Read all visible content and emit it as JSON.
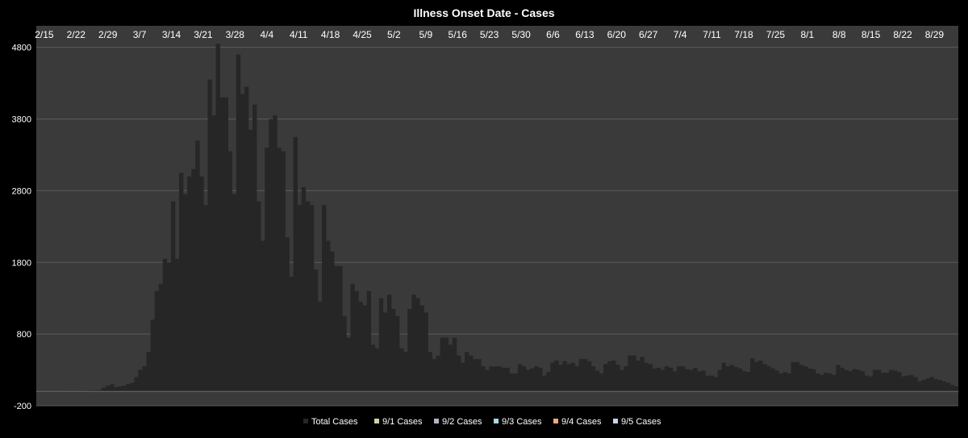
{
  "chart_data": {
    "type": "bar",
    "title": "Illness Onset Date - Cases",
    "xlabel": "",
    "ylabel": "",
    "ylim": [
      -200,
      5100
    ],
    "yticks": [
      -200,
      800,
      1800,
      2800,
      3800,
      4800
    ],
    "grid": true,
    "legend_position": "bottom",
    "x_tick_labels": [
      "2/15",
      "2/22",
      "2/29",
      "3/7",
      "3/14",
      "3/21",
      "3/28",
      "4/4",
      "4/11",
      "4/18",
      "4/25",
      "5/2",
      "5/9",
      "5/16",
      "5/23",
      "5/30",
      "6/6",
      "6/13",
      "6/20",
      "6/27",
      "7/4",
      "7/11",
      "7/18",
      "7/25",
      "8/1",
      "8/8",
      "8/15",
      "8/22",
      "8/29"
    ],
    "series": [
      {
        "name": "Total Cases",
        "color": "#262626",
        "values": [
          2,
          2,
          2,
          2,
          2,
          3,
          3,
          4,
          5,
          5,
          7,
          7,
          10,
          12,
          15,
          20,
          50,
          80,
          100,
          60,
          70,
          80,
          100,
          120,
          200,
          300,
          350,
          550,
          1000,
          1400,
          1500,
          1850,
          1800,
          2650,
          1850,
          3050,
          2750,
          3000,
          3100,
          3500,
          3000,
          2600,
          4350,
          3850,
          4850,
          4100,
          4100,
          3350,
          2750,
          4700,
          4150,
          4250,
          3650,
          4000,
          2650,
          2100,
          3400,
          3800,
          3850,
          3400,
          3350,
          2150,
          1600,
          3550,
          2600,
          2850,
          2650,
          2600,
          1700,
          1250,
          2600,
          2100,
          1950,
          1750,
          1750,
          1050,
          750,
          1500,
          1400,
          1250,
          1200,
          1400,
          650,
          600,
          1300,
          1100,
          1350,
          1150,
          1050,
          600,
          550,
          1150,
          1350,
          1300,
          1200,
          1100,
          550,
          450,
          500,
          750,
          750,
          650,
          750,
          500,
          400,
          550,
          500,
          450,
          450,
          350,
          300,
          350,
          350,
          350,
          330,
          330,
          250,
          250,
          380,
          350,
          300,
          320,
          350,
          330,
          220,
          270,
          400,
          430,
          370,
          420,
          380,
          400,
          350,
          450,
          450,
          420,
          350,
          290,
          250,
          380,
          420,
          430,
          370,
          300,
          350,
          500,
          500,
          430,
          480,
          400,
          380,
          320,
          330,
          300,
          350,
          330,
          280,
          350,
          350,
          310,
          300,
          330,
          280,
          290,
          220,
          220,
          200,
          300,
          400,
          350,
          370,
          340,
          320,
          280,
          270,
          460,
          410,
          430,
          380,
          350,
          320,
          290,
          250,
          270,
          250,
          410,
          410,
          370,
          350,
          320,
          310,
          250,
          230,
          260,
          250,
          230,
          370,
          330,
          300,
          280,
          310,
          300,
          280,
          220,
          210,
          300,
          300,
          260,
          260,
          300,
          290,
          270,
          210,
          220,
          230,
          200,
          140,
          160,
          180,
          200,
          170,
          160,
          140,
          120,
          90,
          70
        ]
      },
      {
        "name": "9/1 Cases",
        "color": "#c9d7a9",
        "values": []
      },
      {
        "name": "9/2 Cases",
        "color": "#b4b4cd",
        "values": []
      },
      {
        "name": "9/3 Cases",
        "color": "#a8d8e8",
        "values": []
      },
      {
        "name": "9/4 Cases",
        "color": "#f4a77c",
        "values": []
      },
      {
        "name": "9/5 Cases",
        "color": "#c6d6ee",
        "values": []
      }
    ]
  },
  "colors": {
    "background": "#000000",
    "plot_area": "#3a3a3a",
    "gridline": "#5a5a5a",
    "text": "#ffffff"
  }
}
